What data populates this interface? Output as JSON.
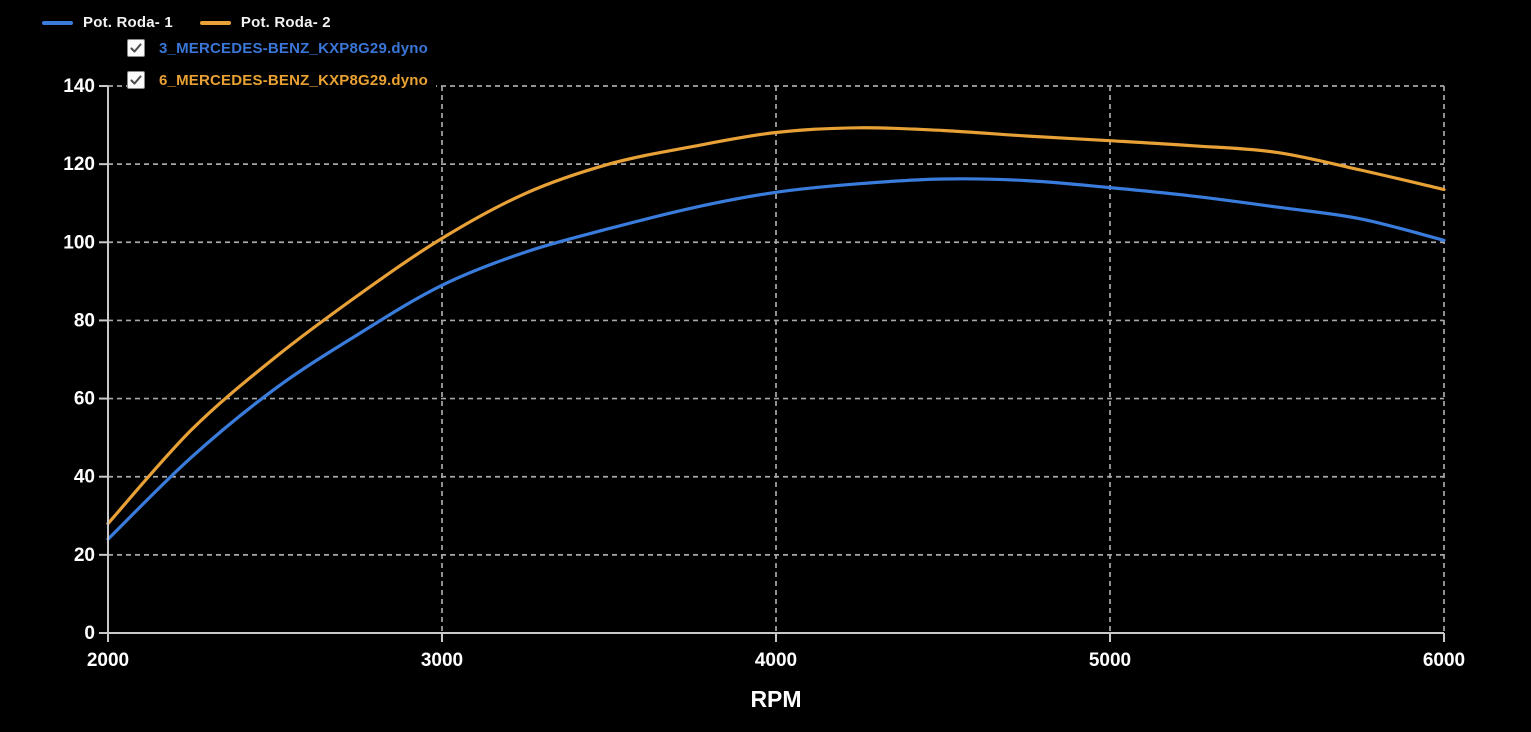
{
  "legend": {
    "series": [
      {
        "label": "Pot. Roda- 1"
      },
      {
        "label": "Pot. Roda- 2"
      }
    ]
  },
  "files": [
    {
      "label": "3_MERCEDES-BENZ_KXP8G29.dyno",
      "checked": true,
      "color": "#3a76d8"
    },
    {
      "label": "6_MERCEDES-BENZ_KXP8G29.dyno",
      "checked": true,
      "color": "#e8a132"
    }
  ],
  "chart_data": {
    "type": "line",
    "x": [
      2000,
      2250,
      2500,
      2750,
      3000,
      3250,
      3500,
      3750,
      4000,
      4250,
      4500,
      4750,
      5000,
      5250,
      5500,
      5750,
      6000
    ],
    "series": [
      {
        "name": "Pot. Roda- 1",
        "color": "#3a7cdc",
        "values": [
          24,
          45,
          62.5,
          76.5,
          89,
          97.5,
          103.5,
          108.8,
          112.8,
          115,
          116.2,
          115.8,
          114,
          111.8,
          109,
          106,
          100.5
        ]
      },
      {
        "name": "Pot. Roda- 2",
        "color": "#e8a137",
        "values": [
          28,
          52,
          70.5,
          86.5,
          101,
          112.5,
          120,
          124.5,
          128.1,
          129.3,
          128.6,
          127.2,
          126,
          124.7,
          123,
          118.5,
          113.5
        ]
      }
    ],
    "title": "",
    "xlabel": "RPM",
    "ylabel": "",
    "xlim": [
      2000,
      6000
    ],
    "ylim": [
      0,
      140
    ],
    "xticks": [
      2000,
      3000,
      4000,
      5000,
      6000
    ],
    "yticks": [
      0,
      20,
      40,
      60,
      80,
      100,
      120,
      140
    ],
    "grid": "dashed",
    "legend_position": "top-left",
    "background": "#000000",
    "axis_color": "#c9c9c9",
    "grid_color": "#a8a8a8",
    "tick_text_color": "#ffffff"
  }
}
